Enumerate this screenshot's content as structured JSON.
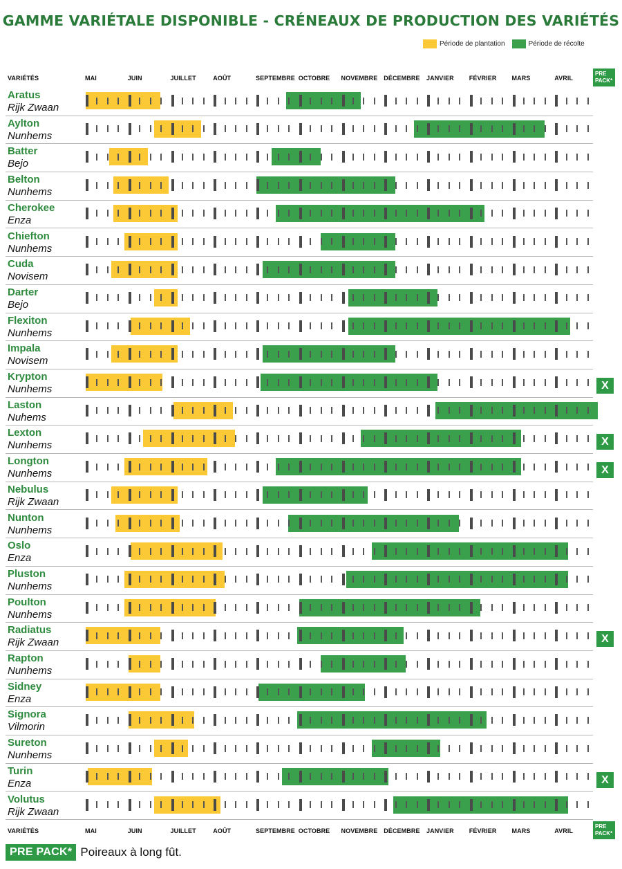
{
  "chart_data": {
    "type": "gantt",
    "title": "GAMME VARIÉTALE DISPONIBLE - CRÉNEAUX DE PRODUCTION DES VARIÉTÉS",
    "legend": [
      {
        "label": "Période de plantation",
        "color": "#fbc935"
      },
      {
        "label": "Période de récolte",
        "color": "#3aa04c"
      }
    ],
    "legend_placement": "top-right",
    "column_header": "VARIÉTÉS",
    "months": [
      "MAI",
      "JUIN",
      "JUILLET",
      "AOÛT",
      "SEPTEMBRE",
      "OCTOBRE",
      "NOVEMBRE",
      "DÉCEMBRE",
      "JANVIER",
      "FÉVRIER",
      "MARS",
      "AVRIL"
    ],
    "axis_unit": "months since start of May (0 = début mai, 12 = fin avril)",
    "prepack_label": [
      "PRE",
      "PACK*"
    ],
    "prepack_mark": "X",
    "varieties": [
      {
        "name": "Aratus",
        "supplier": "Rijk Zwaan",
        "planting": [
          0.0,
          1.75
        ],
        "harvest": [
          4.7,
          6.45
        ],
        "prepack": false
      },
      {
        "name": "Aylton",
        "supplier": "Nunhems",
        "planting": [
          1.6,
          2.7
        ],
        "harvest": [
          7.7,
          10.75
        ],
        "prepack": false
      },
      {
        "name": "Batter",
        "supplier": "Bejo",
        "planting": [
          0.55,
          1.45
        ],
        "harvest": [
          4.35,
          5.5
        ],
        "prepack": false
      },
      {
        "name": "Belton",
        "supplier": "Nunhems",
        "planting": [
          0.65,
          1.95
        ],
        "harvest": [
          4.0,
          7.25
        ],
        "prepack": false
      },
      {
        "name": "Cherokee",
        "supplier": "Enza",
        "planting": [
          0.65,
          2.15
        ],
        "harvest": [
          4.45,
          9.35
        ],
        "prepack": false
      },
      {
        "name": "Chiefton",
        "supplier": "Nunhems",
        "planting": [
          0.9,
          2.15
        ],
        "harvest": [
          5.5,
          7.25
        ],
        "prepack": false
      },
      {
        "name": "Cuda",
        "supplier": "Novisem",
        "planting": [
          0.6,
          2.15
        ],
        "harvest": [
          4.15,
          7.25
        ],
        "prepack": false
      },
      {
        "name": "Darter",
        "supplier": "Bejo",
        "planting": [
          1.6,
          2.15
        ],
        "harvest": [
          6.15,
          8.25
        ],
        "prepack": false
      },
      {
        "name": "Flexiton",
        "supplier": "Nunhems",
        "planting": [
          1.05,
          2.45
        ],
        "harvest": [
          6.15,
          11.35
        ],
        "prepack": false
      },
      {
        "name": "Impala",
        "supplier": "Novisem",
        "planting": [
          0.6,
          2.15
        ],
        "harvest": [
          4.15,
          7.25
        ],
        "prepack": false
      },
      {
        "name": "Krypton",
        "supplier": "Nunhems",
        "planting": [
          0.0,
          1.8
        ],
        "harvest": [
          4.1,
          8.25
        ],
        "prepack": true
      },
      {
        "name": "Laston",
        "supplier": "Nuhems",
        "planting": [
          2.05,
          3.45
        ],
        "harvest": [
          8.2,
          12.0
        ],
        "prepack": false
      },
      {
        "name": "Lexton",
        "supplier": "Nunhems",
        "planting": [
          1.35,
          3.5
        ],
        "harvest": [
          6.45,
          10.2
        ],
        "prepack": true
      },
      {
        "name": "Longton",
        "supplier": "Nunhems",
        "planting": [
          0.9,
          2.85
        ],
        "harvest": [
          4.45,
          10.2
        ],
        "prepack": true
      },
      {
        "name": "Nebulus",
        "supplier": "Rijk Zwaan",
        "planting": [
          0.6,
          2.15
        ],
        "harvest": [
          4.15,
          6.6
        ],
        "prepack": false
      },
      {
        "name": "Nunton",
        "supplier": "Nunhems",
        "planting": [
          0.7,
          2.2
        ],
        "harvest": [
          4.75,
          8.75
        ],
        "prepack": false
      },
      {
        "name": "Oslo",
        "supplier": "Enza",
        "planting": [
          1.05,
          3.2
        ],
        "harvest": [
          6.7,
          11.3
        ],
        "prepack": false
      },
      {
        "name": "Pluston",
        "supplier": "Nunhems",
        "planting": [
          0.9,
          3.25
        ],
        "harvest": [
          6.1,
          11.3
        ],
        "prepack": false
      },
      {
        "name": "Poulton",
        "supplier": "Nunhems",
        "planting": [
          0.9,
          3.05
        ],
        "harvest": [
          5.0,
          9.25
        ],
        "prepack": false
      },
      {
        "name": "Radiatus",
        "supplier": "Rijk Zwaan",
        "planting": [
          0.0,
          1.75
        ],
        "harvest": [
          4.95,
          7.45
        ],
        "prepack": true
      },
      {
        "name": "Rapton",
        "supplier": "Nunhems",
        "planting": [
          1.0,
          1.75
        ],
        "harvest": [
          5.5,
          7.5
        ],
        "prepack": false
      },
      {
        "name": "Sidney",
        "supplier": "Enza",
        "planting": [
          0.0,
          1.75
        ],
        "harvest": [
          4.05,
          6.55
        ],
        "prepack": false
      },
      {
        "name": "Signora",
        "supplier": "Vilmorin",
        "planting": [
          1.0,
          2.55
        ],
        "harvest": [
          4.95,
          9.4
        ],
        "prepack": false
      },
      {
        "name": "Sureton",
        "supplier": "Nunhems",
        "planting": [
          1.6,
          2.4
        ],
        "harvest": [
          6.7,
          8.3
        ],
        "prepack": false
      },
      {
        "name": "Turin",
        "supplier": "Enza",
        "planting": [
          0.05,
          1.55
        ],
        "harvest": [
          4.6,
          7.1
        ],
        "prepack": true
      },
      {
        "name": "Volutus",
        "supplier": "Rijk Zwaan",
        "planting": [
          1.6,
          3.15
        ],
        "harvest": [
          7.2,
          11.3
        ],
        "prepack": false
      }
    ]
  },
  "footer": {
    "badge": "PRE PACK*",
    "text": "Poireaux à long fût."
  }
}
